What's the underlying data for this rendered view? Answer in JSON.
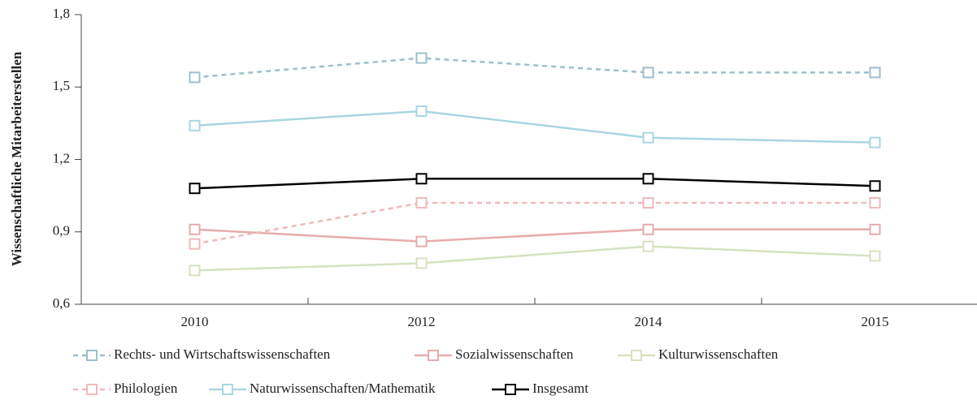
{
  "chart_data": {
    "type": "line",
    "y_label": "Wissenschaftliche Mitarbeiterstellen",
    "categories": [
      "2010",
      "2012",
      "2014",
      "2015"
    ],
    "ylim": [
      0.6,
      1.8
    ],
    "yticks": [
      {
        "value": 0.6,
        "label": "0,6"
      },
      {
        "value": 0.9,
        "label": "0,9"
      },
      {
        "value": 1.2,
        "label": "1,2"
      },
      {
        "value": 1.5,
        "label": "1,5"
      },
      {
        "value": 1.8,
        "label": "1,8"
      }
    ],
    "series": [
      {
        "name": "Rechts- und Wirtschaftswissenschaften",
        "color": "#9dbfcd",
        "dashed": true,
        "values": [
          1.54,
          1.62,
          1.56,
          1.56
        ]
      },
      {
        "name": "Sozialwissenschaften",
        "color": "#e6acac",
        "dashed": false,
        "values": [
          0.91,
          0.86,
          0.91,
          0.91
        ]
      },
      {
        "name": "Kulturwissenschaften",
        "color": "#d5e3c0",
        "dashed": false,
        "values": [
          0.74,
          0.77,
          0.84,
          0.8
        ]
      },
      {
        "name": "Philologien",
        "color": "#f0b9b9",
        "dashed": true,
        "values": [
          0.85,
          1.02,
          1.02,
          1.02
        ]
      },
      {
        "name": "Naturwissenschaften/Mathematik",
        "color": "#a9d6e3",
        "dashed": false,
        "values": [
          1.34,
          1.4,
          1.29,
          1.27
        ]
      },
      {
        "name": "Insgesamt",
        "color": "#000000",
        "dashed": false,
        "values": [
          1.08,
          1.12,
          1.12,
          1.09
        ]
      }
    ]
  }
}
